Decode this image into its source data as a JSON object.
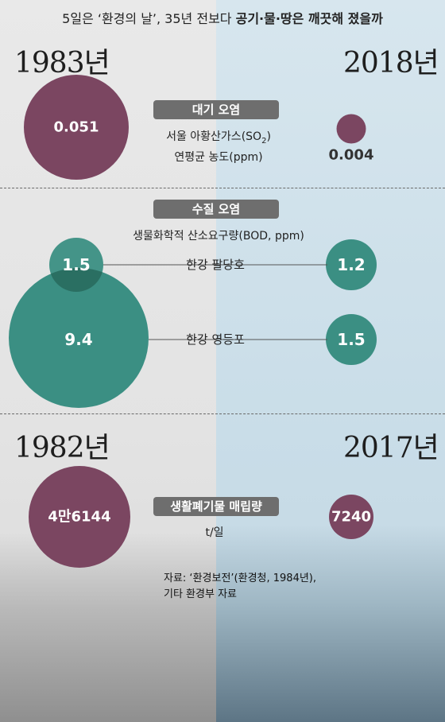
{
  "header": {
    "title_plain": "5일은 ‘환경의 날’, 35년 전보다 ",
    "title_bold": "공기·물·땅은 깨끗해 졌을까"
  },
  "years": {
    "top_left": "1983년",
    "top_right": "2018년",
    "bottom_left": "1982년",
    "bottom_right": "2017년"
  },
  "sections": {
    "air": {
      "label": "대기 오염",
      "desc_line1": "서울 아황산가스(SO",
      "desc_sub": "2",
      "desc_close": ")",
      "desc_line2": "연평균 농도(ppm)"
    },
    "water": {
      "label": "수질 오염",
      "desc": "생물화학적 산소요구량(BOD, ppm)",
      "row1": "한강 팔당호",
      "row2": "한강 영등포"
    },
    "waste": {
      "label": "생활폐기물 매립량",
      "unit": "t/일"
    }
  },
  "source": {
    "line1": "자료: ‘환경보전’(환경청, 1984년),",
    "line2": "기타 환경부 자료"
  },
  "colors": {
    "purple": "#7b4661",
    "teal": "#3b8f83",
    "teal_dark": "#2a6f62"
  },
  "chart_data": [
    {
      "type": "bubble",
      "title": "대기 오염",
      "categories": [
        "1983년",
        "2018년"
      ],
      "values": [
        0.051,
        0.004
      ],
      "labels": [
        "0.051",
        "0.004"
      ],
      "unit": "ppm"
    },
    {
      "type": "bubble",
      "title": "수질 오염",
      "categories": [
        "1983년",
        "2018년"
      ],
      "series": [
        {
          "name": "한강 팔당호",
          "values": [
            1.5,
            1.2
          ],
          "labels": [
            "1.5",
            "1.2"
          ]
        },
        {
          "name": "한강 영등포",
          "values": [
            9.4,
            1.5
          ],
          "labels": [
            "9.4",
            "1.5"
          ]
        }
      ],
      "unit": "ppm"
    },
    {
      "type": "bubble",
      "title": "생활폐기물 매립량",
      "categories": [
        "1982년",
        "2017년"
      ],
      "values": [
        46144,
        7240
      ],
      "labels": [
        "4만6144",
        "7240"
      ],
      "unit": "t/일"
    }
  ]
}
